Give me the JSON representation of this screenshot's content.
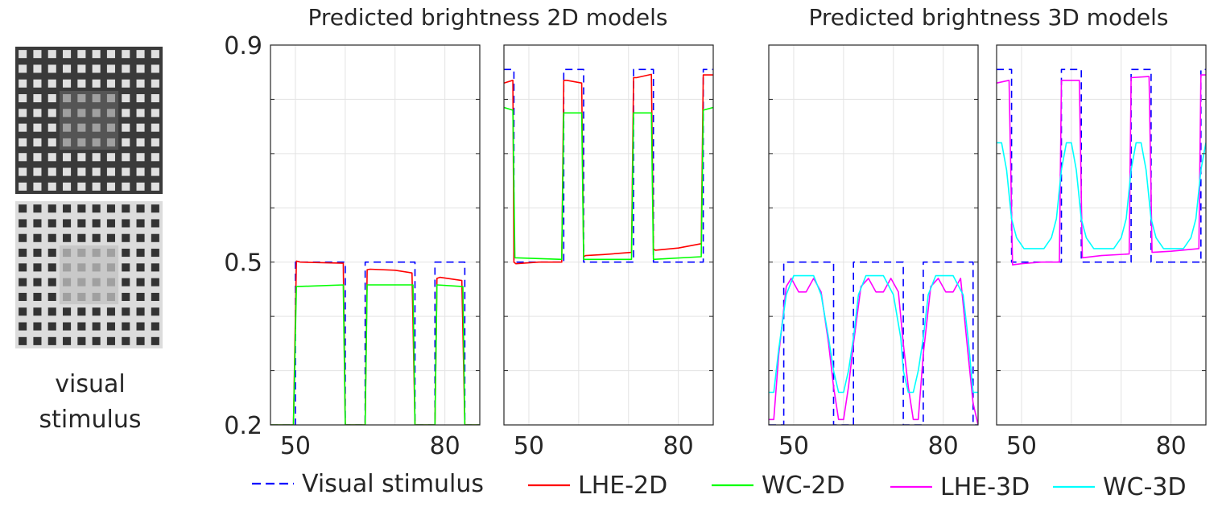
{
  "stimulus": {
    "caption_line1": "visual",
    "caption_line2": "stimulus",
    "grid_top": {
      "background": "#3a3a3a",
      "square": "#e0e0e0",
      "center_square": "#a0a0a0",
      "center_background": "#555555"
    },
    "grid_bottom": {
      "background": "#dcdcdc",
      "square": "#333333",
      "center_square": "#a0a0a0",
      "center_background": "#c8c8c8"
    }
  },
  "titles": {
    "left": "Predicted brightness 2D models",
    "right": "Predicted brightness 3D models"
  },
  "legend": [
    {
      "label": "Visual stimulus",
      "color": "#0000ff",
      "dashed": true
    },
    {
      "label": "LHE-2D",
      "color": "#ff0000",
      "dashed": false
    },
    {
      "label": "WC-2D",
      "color": "#00ff00",
      "dashed": false
    },
    {
      "label": "LHE-3D",
      "color": "#ff00ff",
      "dashed": false
    },
    {
      "label": "WC-3D",
      "color": "#00ffff",
      "dashed": false
    }
  ],
  "chart_data": [
    {
      "type": "line",
      "xlim": [
        45,
        87
      ],
      "ylim": [
        0.2,
        0.9
      ],
      "xticks": [
        50,
        80
      ],
      "yticks": [
        0.2,
        0.5,
        0.9
      ],
      "grid": true,
      "series": [
        {
          "name": "Visual stimulus",
          "color": "#0000ff",
          "dashed": true,
          "x": [
            45,
            50,
            50,
            60,
            60,
            64,
            64,
            74,
            74,
            78,
            78,
            84,
            84,
            87
          ],
          "y": [
            0.2,
            0.2,
            0.5,
            0.5,
            0.2,
            0.2,
            0.5,
            0.5,
            0.2,
            0.2,
            0.5,
            0.5,
            0.2,
            0.2
          ]
        },
        {
          "name": "LHE-2D",
          "color": "#ff0000",
          "dashed": false,
          "x": [
            45,
            49.6,
            50.2,
            51,
            59.6,
            60,
            64,
            64.4,
            65,
            70,
            73.4,
            74,
            78,
            78.4,
            79,
            83.4,
            84,
            87
          ],
          "y": [
            0.2,
            0.2,
            0.502,
            0.5,
            0.498,
            0.2,
            0.2,
            0.486,
            0.487,
            0.485,
            0.48,
            0.2,
            0.2,
            0.47,
            0.472,
            0.466,
            0.2,
            0.2
          ]
        },
        {
          "name": "WC-2D",
          "color": "#00ff00",
          "dashed": false,
          "x": [
            45,
            49.6,
            50.2,
            59.6,
            60,
            64,
            64.4,
            73.6,
            74,
            78,
            78.4,
            83.6,
            84,
            87
          ],
          "y": [
            0.2,
            0.2,
            0.455,
            0.458,
            0.2,
            0.2,
            0.458,
            0.458,
            0.2,
            0.2,
            0.458,
            0.455,
            0.2,
            0.2
          ]
        }
      ]
    },
    {
      "type": "line",
      "xlim": [
        45,
        87
      ],
      "ylim": [
        0.2,
        0.9
      ],
      "xticks": [
        50,
        80
      ],
      "yticks": [
        0.2,
        0.5,
        0.9
      ],
      "grid": true,
      "series": [
        {
          "name": "Visual stimulus",
          "color": "#0000ff",
          "dashed": true,
          "x": [
            45,
            47,
            47,
            57,
            57,
            61,
            61,
            71,
            71,
            75,
            75,
            85,
            85,
            87
          ],
          "y": [
            0.855,
            0.855,
            0.5,
            0.5,
            0.855,
            0.855,
            0.5,
            0.5,
            0.855,
            0.855,
            0.5,
            0.5,
            0.855,
            0.855
          ]
        },
        {
          "name": "LHE-2D",
          "color": "#ff0000",
          "dashed": false,
          "x": [
            45,
            46.8,
            47,
            47.4,
            52,
            56.6,
            57,
            57.6,
            60.6,
            61,
            61.4,
            65,
            70.6,
            71,
            71.6,
            74.6,
            75,
            75.4,
            80,
            84.6,
            85,
            85.6,
            87
          ],
          "y": [
            0.83,
            0.835,
            0.5,
            0.497,
            0.5,
            0.5,
            0.835,
            0.835,
            0.83,
            0.51,
            0.512,
            0.514,
            0.518,
            0.84,
            0.84,
            0.846,
            0.524,
            0.522,
            0.526,
            0.534,
            0.845,
            0.845,
            0.845
          ]
        },
        {
          "name": "WC-2D",
          "color": "#00ff00",
          "dashed": false,
          "x": [
            45,
            46.8,
            47.2,
            56.6,
            57,
            60.6,
            61,
            70.6,
            71,
            74.6,
            75,
            84.6,
            85,
            87
          ],
          "y": [
            0.785,
            0.78,
            0.508,
            0.505,
            0.775,
            0.775,
            0.505,
            0.505,
            0.775,
            0.775,
            0.505,
            0.51,
            0.78,
            0.785
          ]
        }
      ]
    },
    {
      "type": "line",
      "xlim": [
        45,
        87
      ],
      "ylim": [
        0.2,
        0.9
      ],
      "xticks": [
        50,
        80
      ],
      "yticks": [
        0.2,
        0.5,
        0.9
      ],
      "grid": true,
      "series": [
        {
          "name": "Visual stimulus",
          "color": "#0000ff",
          "dashed": true,
          "x": [
            45,
            48,
            48,
            58,
            58,
            62,
            62,
            72,
            72,
            76,
            76,
            86,
            86,
            87
          ],
          "y": [
            0.2,
            0.2,
            0.5,
            0.5,
            0.2,
            0.2,
            0.5,
            0.5,
            0.2,
            0.2,
            0.5,
            0.5,
            0.2,
            0.2
          ]
        },
        {
          "name": "LHE-3D",
          "color": "#ff00ff",
          "dashed": false,
          "x": [
            45,
            46,
            47,
            48.5,
            49.5,
            51,
            52.5,
            54,
            55.5,
            57,
            58,
            59,
            60,
            61,
            62,
            63.5,
            65,
            66.5,
            68,
            69.5,
            71,
            72,
            73,
            74,
            75,
            76,
            77.5,
            79,
            80.5,
            82,
            83.5,
            85,
            86,
            87
          ],
          "y": [
            0.21,
            0.21,
            0.33,
            0.455,
            0.47,
            0.445,
            0.445,
            0.47,
            0.445,
            0.35,
            0.27,
            0.21,
            0.21,
            0.27,
            0.35,
            0.455,
            0.47,
            0.445,
            0.445,
            0.47,
            0.445,
            0.35,
            0.27,
            0.21,
            0.21,
            0.33,
            0.455,
            0.47,
            0.445,
            0.445,
            0.47,
            0.33,
            0.24,
            0.2
          ]
        },
        {
          "name": "WC-3D",
          "color": "#00ffff",
          "dashed": false,
          "x": [
            45,
            46,
            47,
            48.5,
            50,
            52,
            54,
            55.5,
            57,
            58,
            59,
            60,
            61,
            62,
            63,
            64.5,
            66,
            68,
            70,
            71.5,
            72,
            73,
            74,
            75,
            76,
            77,
            78.5,
            80,
            82,
            84,
            85,
            86,
            87
          ],
          "y": [
            0.26,
            0.26,
            0.34,
            0.44,
            0.475,
            0.475,
            0.475,
            0.44,
            0.36,
            0.3,
            0.26,
            0.26,
            0.3,
            0.36,
            0.44,
            0.475,
            0.475,
            0.475,
            0.44,
            0.36,
            0.3,
            0.26,
            0.26,
            0.3,
            0.36,
            0.44,
            0.475,
            0.475,
            0.475,
            0.44,
            0.36,
            0.26,
            0.26
          ]
        }
      ]
    },
    {
      "type": "line",
      "xlim": [
        45,
        87
      ],
      "ylim": [
        0.2,
        0.9
      ],
      "xticks": [
        50,
        80
      ],
      "yticks": [
        0.2,
        0.5,
        0.9
      ],
      "grid": true,
      "series": [
        {
          "name": "Visual stimulus",
          "color": "#0000ff",
          "dashed": true,
          "x": [
            45,
            48,
            48,
            58,
            58,
            62,
            62,
            72,
            72,
            76,
            76,
            86,
            86,
            87
          ],
          "y": [
            0.855,
            0.855,
            0.5,
            0.5,
            0.855,
            0.855,
            0.5,
            0.5,
            0.855,
            0.855,
            0.5,
            0.5,
            0.855,
            0.855
          ]
        },
        {
          "name": "LHE-3D",
          "color": "#ff00ff",
          "dashed": false,
          "x": [
            45,
            47.5,
            48.2,
            50,
            54,
            57.6,
            58,
            61.6,
            62.2,
            66,
            71.6,
            72,
            75.6,
            76.2,
            80,
            85.6,
            86,
            87
          ],
          "y": [
            0.83,
            0.835,
            0.495,
            0.497,
            0.5,
            0.5,
            0.835,
            0.835,
            0.508,
            0.512,
            0.515,
            0.84,
            0.842,
            0.518,
            0.52,
            0.525,
            0.845,
            0.845
          ]
        },
        {
          "name": "WC-3D",
          "color": "#00ffff",
          "dashed": false,
          "x": [
            45,
            46,
            47,
            48,
            49,
            50.5,
            52.5,
            54.5,
            56,
            57,
            58,
            59,
            60,
            61,
            62,
            63,
            64.5,
            66.5,
            68.5,
            70,
            71,
            72,
            73,
            74,
            75,
            76,
            77,
            78.5,
            80.5,
            82.5,
            84,
            85,
            86,
            87
          ],
          "y": [
            0.72,
            0.72,
            0.67,
            0.58,
            0.545,
            0.525,
            0.525,
            0.525,
            0.545,
            0.58,
            0.67,
            0.72,
            0.72,
            0.67,
            0.58,
            0.545,
            0.525,
            0.525,
            0.525,
            0.545,
            0.58,
            0.67,
            0.72,
            0.72,
            0.67,
            0.58,
            0.545,
            0.525,
            0.525,
            0.525,
            0.545,
            0.58,
            0.67,
            0.72
          ]
        }
      ]
    }
  ]
}
